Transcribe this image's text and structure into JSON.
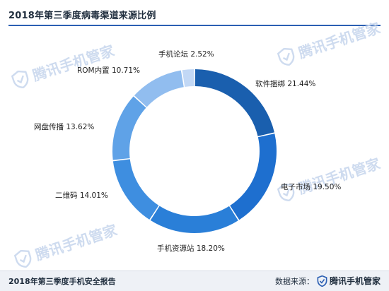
{
  "title": "2018年第三季度病毒渠道来源比例",
  "watermark": {
    "text": "腾讯手机管家",
    "color": "#c9d8ee"
  },
  "footer": {
    "report_title": "2018年第三季度手机安全报告",
    "source_label": "数据来源：",
    "brand": "腾讯手机管家",
    "background": "#eef1f6",
    "accent": "#2b5fb3"
  },
  "chart_data": {
    "type": "pie",
    "donut": true,
    "title": "2018年第三季度病毒渠道来源比例",
    "categories": [
      "软件捆绑",
      "电子市场",
      "手机资源站",
      "二维码",
      "网盘传播",
      "ROM内置",
      "手机论坛"
    ],
    "values": [
      21.44,
      19.5,
      18.2,
      14.01,
      13.62,
      10.71,
      2.52
    ],
    "labels": [
      "软件捆绑  21.44%",
      "电子市场  19.50%",
      "手机资源站  18.20%",
      "二维码  14.01%",
      "网盘传播  13.62%",
      "ROM内置  10.71%",
      "手机论坛  2.52%"
    ],
    "colors": [
      "#1a5fae",
      "#1e6fcf",
      "#2a7fd8",
      "#3e8ee0",
      "#5fa2e7",
      "#91bdef",
      "#c2d8f5"
    ],
    "start": "top",
    "direction": "clockwise",
    "legend": "none"
  }
}
